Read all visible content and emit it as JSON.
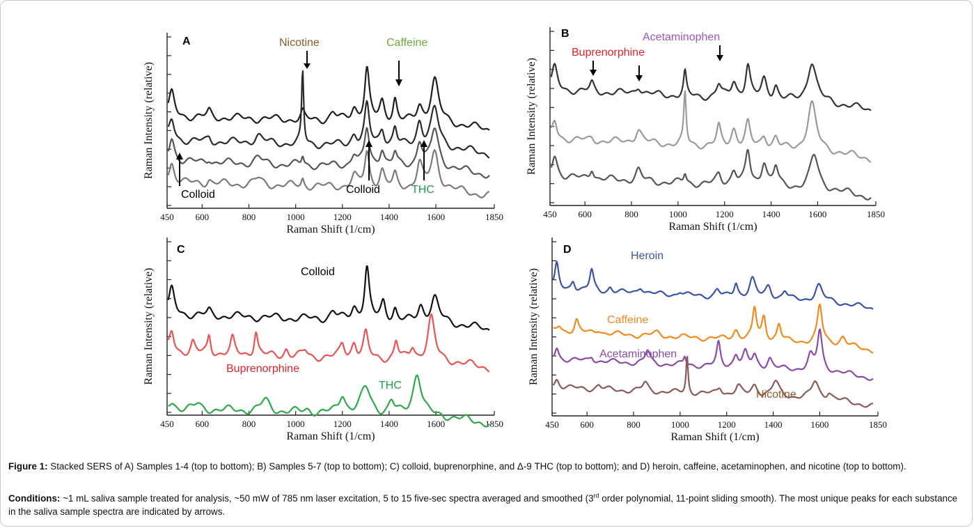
{
  "figure": {
    "caption_label": "Figure 1:",
    "caption_text": "Stacked SERS of A) Samples 1-4 (top to bottom); B) Samples 5-7 (top to bottom); C) colloid, buprenorphine, and Δ-9 THC (top to bottom); and D) heroin, caffeine, acetaminophen, and nicotine (top to bottom).",
    "conditions_label": "Conditions:",
    "conditions_text_1": "~1 mL saliva sample treated for analysis, ~50 mW of 785 nm laser excitation, 5 to 15 five-sec spectra averaged and smoothed (3",
    "conditions_sup": "rd",
    "conditions_text_2": " order polynomial, 11-point sliding smooth). The most unique peaks for each substance in the saliva sample spectra are indicated by arrows."
  },
  "chart_data": [
    {
      "panel": "A",
      "type": "line",
      "xlabel": "Raman Shift (1/cm)",
      "ylabel": "Raman Intensity (relative)",
      "xlim": [
        450,
        1850
      ],
      "xticks": [
        450,
        600,
        800,
        1000,
        1200,
        1400,
        1600,
        1850
      ],
      "series": [
        {
          "color": "#1e1e1e",
          "peaks": [
            [
              470,
              1.5,
              14
            ],
            [
              630,
              0.4,
              10
            ],
            [
              1030,
              0.5,
              8
            ],
            [
              1160,
              0.5,
              16
            ],
            [
              1250,
              0.8,
              14
            ],
            [
              1305,
              3.4,
              12
            ],
            [
              1370,
              1.2,
              12
            ],
            [
              1425,
              1.5,
              10
            ],
            [
              1530,
              1.0,
              14
            ],
            [
              1595,
              2.8,
              20
            ]
          ]
        },
        {
          "color": "#2a2a2a",
          "peaks": [
            [
              470,
              1.4,
              14
            ],
            [
              630,
              0.3,
              10
            ],
            [
              840,
              0.5,
              20
            ],
            [
              1030,
              4.8,
              5
            ],
            [
              1250,
              0.7,
              14
            ],
            [
              1305,
              2.6,
              12
            ],
            [
              1370,
              1.1,
              12
            ],
            [
              1425,
              1.2,
              10
            ],
            [
              1530,
              1.6,
              14
            ],
            [
              1595,
              2.5,
              20
            ]
          ]
        },
        {
          "color": "#555555",
          "peaks": [
            [
              470,
              1.6,
              14
            ],
            [
              630,
              0.3,
              10
            ],
            [
              840,
              0.4,
              20
            ],
            [
              1030,
              0.6,
              6
            ],
            [
              1250,
              0.8,
              14
            ],
            [
              1305,
              2.4,
              12
            ],
            [
              1370,
              1.2,
              12
            ],
            [
              1425,
              0.9,
              10
            ],
            [
              1530,
              1.7,
              14
            ],
            [
              1595,
              2.5,
              20
            ]
          ]
        },
        {
          "color": "#7a7a7a",
          "peaks": [
            [
              470,
              1.3,
              14
            ],
            [
              630,
              0.3,
              10
            ],
            [
              840,
              0.4,
              20
            ],
            [
              1030,
              0.5,
              6
            ],
            [
              1250,
              0.7,
              14
            ],
            [
              1305,
              2.3,
              12
            ],
            [
              1370,
              1.1,
              12
            ],
            [
              1425,
              0.8,
              10
            ],
            [
              1530,
              1.6,
              14
            ],
            [
              1595,
              2.4,
              20
            ]
          ]
        }
      ],
      "annotations": [
        {
          "text": "Nicotine",
          "color": "#8b5a2b"
        },
        {
          "text": "Caffeine",
          "color": "#6aaa3a"
        },
        {
          "text": "Colloid",
          "color": "#000000"
        },
        {
          "text": "Colloid",
          "color": "#000000"
        },
        {
          "text": "THC",
          "color": "#1aa04a"
        }
      ]
    },
    {
      "panel": "B",
      "type": "line",
      "xlabel": "Raman Shift (1/cm)",
      "ylabel": "Raman Intensity (relative)",
      "xlim": [
        450,
        1850
      ],
      "xticks": [
        450,
        600,
        800,
        1000,
        1200,
        1400,
        1600,
        1850
      ],
      "series": [
        {
          "color": "#333333",
          "peaks": [
            [
              470,
              1.6,
              14
            ],
            [
              630,
              0.6,
              10
            ],
            [
              830,
              0.6,
              14
            ],
            [
              1030,
              1.7,
              7
            ],
            [
              1175,
              0.9,
              12
            ],
            [
              1240,
              1.2,
              14
            ],
            [
              1300,
              2.4,
              12
            ],
            [
              1370,
              1.4,
              14
            ],
            [
              1420,
              1.0,
              12
            ],
            [
              1575,
              2.9,
              22
            ]
          ]
        },
        {
          "color": "#9a9a9a",
          "peaks": [
            [
              470,
              1.3,
              12
            ],
            [
              630,
              0.2,
              10
            ],
            [
              830,
              1.0,
              16
            ],
            [
              1030,
              3.8,
              6
            ],
            [
              1175,
              1.4,
              10
            ],
            [
              1240,
              1.3,
              14
            ],
            [
              1300,
              1.7,
              12
            ],
            [
              1370,
              0.9,
              14
            ],
            [
              1420,
              0.8,
              12
            ],
            [
              1575,
              3.4,
              22
            ]
          ]
        },
        {
          "color": "#555555",
          "peaks": [
            [
              470,
              1.6,
              14
            ],
            [
              630,
              0.8,
              10
            ],
            [
              830,
              0.8,
              14
            ],
            [
              1030,
              0.7,
              7
            ],
            [
              1175,
              0.7,
              12
            ],
            [
              1240,
              1.1,
              14
            ],
            [
              1300,
              2.4,
              12
            ],
            [
              1370,
              1.8,
              14
            ],
            [
              1420,
              1.4,
              12
            ],
            [
              1585,
              2.4,
              22
            ]
          ]
        }
      ],
      "annotations": [
        {
          "text": "Acetaminophen",
          "color": "#9a55c0"
        },
        {
          "text": "Buprenorphine",
          "color": "#e0242a"
        }
      ]
    },
    {
      "panel": "C",
      "type": "line",
      "xlabel": "Raman Shift (1/cm)",
      "ylabel": "Raman Intensity (relative)",
      "xlim": [
        450,
        1850
      ],
      "xticks": [
        450,
        600,
        800,
        1000,
        1200,
        1400,
        1600,
        1850
      ],
      "series": [
        {
          "color": "#111111",
          "peaks": [
            [
              470,
              1.6,
              14
            ],
            [
              630,
              0.3,
              10
            ],
            [
              1160,
              0.5,
              16
            ],
            [
              1250,
              0.8,
              14
            ],
            [
              1305,
              3.4,
              12
            ],
            [
              1375,
              1.2,
              12
            ],
            [
              1425,
              0.8,
              10
            ],
            [
              1535,
              1.0,
              14
            ],
            [
              1595,
              1.6,
              20
            ]
          ]
        },
        {
          "color": "#e85454",
          "peaks": [
            [
              470,
              1.4,
              12
            ],
            [
              560,
              0.7,
              10
            ],
            [
              630,
              1.2,
              8
            ],
            [
              730,
              1.0,
              10
            ],
            [
              830,
              1.6,
              9
            ],
            [
              960,
              0.5,
              10
            ],
            [
              1040,
              0.4,
              12
            ],
            [
              1200,
              0.9,
              12
            ],
            [
              1250,
              1.0,
              12
            ],
            [
              1300,
              1.6,
              12
            ],
            [
              1430,
              1.2,
              10
            ],
            [
              1500,
              0.8,
              12
            ],
            [
              1580,
              2.8,
              18
            ]
          ]
        },
        {
          "color": "#2da84a",
          "peaks": [
            [
              470,
              0.4,
              16
            ],
            [
              580,
              0.3,
              16
            ],
            [
              870,
              0.7,
              22
            ],
            [
              1050,
              0.2,
              16
            ],
            [
              1200,
              1.2,
              16
            ],
            [
              1300,
              1.7,
              26
            ],
            [
              1410,
              0.8,
              14
            ],
            [
              1520,
              2.8,
              22
            ]
          ]
        }
      ],
      "annotations": [
        {
          "text": "Colloid",
          "color": "#000000"
        },
        {
          "text": "Buprenorphine",
          "color": "#e0242a"
        },
        {
          "text": "THC",
          "color": "#1aa04a"
        }
      ]
    },
    {
      "panel": "D",
      "type": "line",
      "xlabel": "Raman Shift (1/cm)",
      "ylabel": "Raman Intensity (relative)",
      "xlim": [
        450,
        1850
      ],
      "xticks": [
        450,
        600,
        800,
        1000,
        1200,
        1400,
        1600,
        1850
      ],
      "series": [
        {
          "color": "#3a52a8",
          "peaks": [
            [
              470,
              2.4,
              10
            ],
            [
              540,
              1.0,
              10
            ],
            [
              620,
              2.0,
              10
            ],
            [
              700,
              0.5,
              10
            ],
            [
              830,
              0.7,
              14
            ],
            [
              1000,
              0.4,
              12
            ],
            [
              1160,
              0.7,
              12
            ],
            [
              1240,
              1.4,
              10
            ],
            [
              1310,
              1.8,
              16
            ],
            [
              1380,
              1.2,
              14
            ],
            [
              1450,
              0.8,
              12
            ],
            [
              1595,
              1.5,
              18
            ]
          ]
        },
        {
          "color": "#f28a1e",
          "peaks": [
            [
              480,
              0.6,
              12
            ],
            [
              555,
              1.2,
              10
            ],
            [
              650,
              0.4,
              14
            ],
            [
              900,
              0.3,
              20
            ],
            [
              1240,
              0.9,
              14
            ],
            [
              1320,
              3.0,
              10
            ],
            [
              1360,
              2.2,
              10
            ],
            [
              1425,
              1.6,
              10
            ],
            [
              1600,
              3.6,
              12
            ],
            [
              1700,
              0.8,
              14
            ]
          ]
        },
        {
          "color": "#8b4aa8",
          "peaks": [
            [
              470,
              1.2,
              10
            ],
            [
              620,
              0.5,
              10
            ],
            [
              860,
              1.2,
              12
            ],
            [
              1020,
              0.8,
              6
            ],
            [
              1165,
              2.2,
              9
            ],
            [
              1240,
              1.2,
              12
            ],
            [
              1280,
              1.3,
              12
            ],
            [
              1320,
              1.2,
              12
            ],
            [
              1385,
              1.0,
              12
            ],
            [
              1560,
              1.3,
              14
            ],
            [
              1600,
              3.8,
              12
            ]
          ]
        },
        {
          "color": "#8a5a5a",
          "peaks": [
            [
              470,
              0.8,
              12
            ],
            [
              650,
              0.4,
              12
            ],
            [
              850,
              0.8,
              14
            ],
            [
              1030,
              3.6,
              5
            ],
            [
              1170,
              0.7,
              12
            ],
            [
              1250,
              0.8,
              14
            ],
            [
              1320,
              1.0,
              16
            ],
            [
              1410,
              1.4,
              18
            ],
            [
              1580,
              1.6,
              18
            ],
            [
              1640,
              0.6,
              12
            ]
          ]
        }
      ],
      "annotations": [
        {
          "text": "Heroin",
          "color": "#3a52a8"
        },
        {
          "text": "Caffeine",
          "color": "#f28a1e"
        },
        {
          "text": "Acetaminophen",
          "color": "#8b4aa8"
        },
        {
          "text": "Nicotine",
          "color": "#8b5a2b"
        }
      ]
    }
  ]
}
